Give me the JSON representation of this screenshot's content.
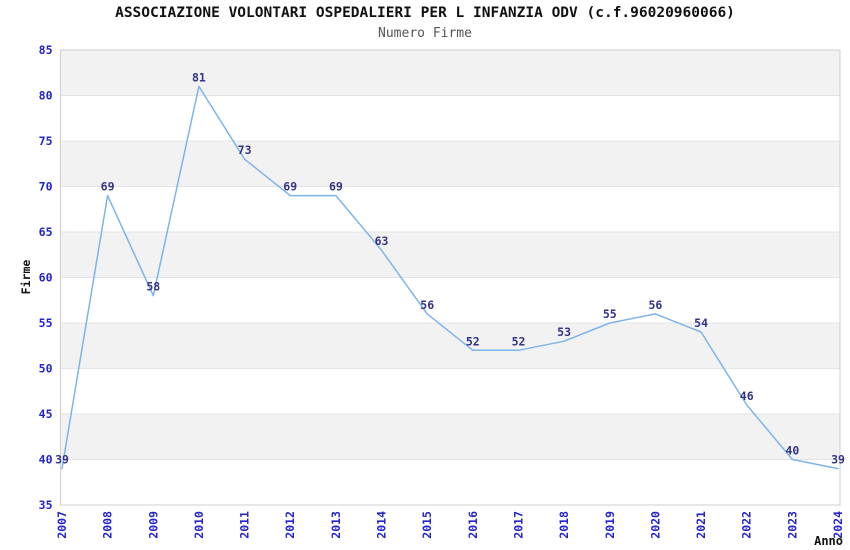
{
  "chart_data": {
    "type": "line",
    "title": "ASSOCIAZIONE VOLONTARI OSPEDALIERI PER L INFANZIA ODV (c.f.96020960066)",
    "subtitle": "Numero Firme",
    "xlabel": "Anno",
    "ylabel": "Firme",
    "categories": [
      "2007",
      "2008",
      "2009",
      "2010",
      "2011",
      "2012",
      "2013",
      "2014",
      "2015",
      "2016",
      "2017",
      "2018",
      "2019",
      "2020",
      "2021",
      "2022",
      "2023",
      "2024"
    ],
    "series": [
      {
        "name": "Numero Firme",
        "values": [
          39,
          69,
          58,
          81,
          73,
          69,
          69,
          63,
          56,
          52,
          52,
          53,
          55,
          56,
          54,
          46,
          40,
          39
        ]
      }
    ],
    "ylim": [
      35,
      85
    ],
    "ytick_step": 5,
    "yticks": [
      35,
      40,
      45,
      50,
      55,
      60,
      65,
      70,
      75,
      80,
      85
    ],
    "data_labels": true,
    "legend_position": "none",
    "grid": "horizontal",
    "banded_background": true,
    "x_tick_rotation": -90
  },
  "colors": {
    "line": "#7db4ea",
    "data_label": "#333388",
    "tick_label": "#2424cc",
    "axis_title": "#111111",
    "band": "#f2f2f2",
    "gridline": "#e4e4e6",
    "plot_border": "#cfcfcf",
    "title": "#111111",
    "subtitle": "#555555",
    "background": "#ffffff"
  }
}
